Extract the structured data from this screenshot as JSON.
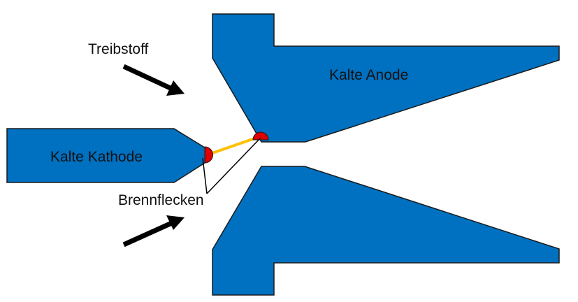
{
  "labels": {
    "propellant": "Treibstoff",
    "anode": "Kalte Anode",
    "cathode": "Kalte Kathode",
    "hot_spots": "Brennflecken"
  },
  "colors": {
    "electrode": "#0070C0",
    "electrode_outline": "#1a1a1a",
    "hot_spot": "#E00000",
    "arc": "#FFC000",
    "arrow": "#000000",
    "background": "#FFFFFF"
  },
  "icons": {
    "flow_arrow": "arrow-icon",
    "hot_spot": "half-circle-icon"
  }
}
